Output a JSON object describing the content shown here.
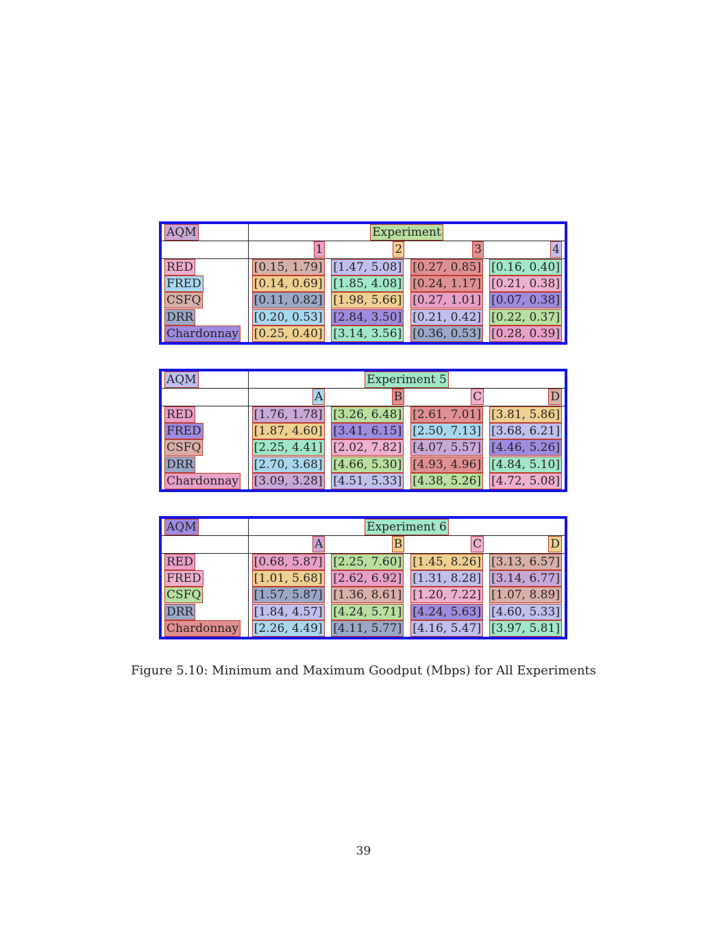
{
  "tables": [
    {
      "corner": "AQM",
      "title": "Experiment",
      "columns": [
        "1",
        "2",
        "3",
        "4"
      ],
      "rows": [
        {
          "aqm": "RED",
          "cells": [
            "[0.15, 1.79]",
            "[1.47, 5.08]",
            "[0.27, 0.85]",
            "[0.16, 0.40]"
          ]
        },
        {
          "aqm": "FRED",
          "cells": [
            "[0.14, 0.69]",
            "[1.85, 4.08]",
            "[0.24, 1.17]",
            "[0.21, 0.38]"
          ]
        },
        {
          "aqm": "CSFQ",
          "cells": [
            "[0.11, 0.82]",
            "[1.98, 5.66]",
            "[0.27, 1.01]",
            "[0.07, 0.38]"
          ]
        },
        {
          "aqm": "DRR",
          "cells": [
            "[0.20, 0.53]",
            "[2.84, 3.50]",
            "[0.21, 0.42]",
            "[0.22, 0.37]"
          ]
        },
        {
          "aqm": "Chardonnay",
          "cells": [
            "[0.25, 0.40]",
            "[3.14, 3.56]",
            "[0.36, 0.53]",
            "[0.28, 0.39]"
          ]
        }
      ]
    },
    {
      "corner": "AQM",
      "title": "Experiment 5",
      "columns": [
        "A",
        "B",
        "C",
        "D"
      ],
      "rows": [
        {
          "aqm": "RED",
          "cells": [
            "[1.76, 1.78]",
            "[3.26, 6.48]",
            "[2.61, 7.01]",
            "[3.81, 5.86]"
          ]
        },
        {
          "aqm": "FRED",
          "cells": [
            "[1.87, 4.60]",
            "[3.41, 6.15]",
            "[2.50, 7.13]",
            "[3.68, 6.21]"
          ]
        },
        {
          "aqm": "CSFQ",
          "cells": [
            "[2.25, 4.41]",
            "[2.02, 7.82]",
            "[4.07, 5.57]",
            "[4.46, 5.26]"
          ]
        },
        {
          "aqm": "DRR",
          "cells": [
            "[2.70, 3.68]",
            "[4.66, 5.30]",
            "[4.93, 4.96]",
            "[4.84, 5.10]"
          ]
        },
        {
          "aqm": "Chardonnay",
          "cells": [
            "[3.09, 3.28]",
            "[4.51, 5.33]",
            "[4.38, 5.26]",
            "[4.72, 5.08]"
          ]
        }
      ]
    },
    {
      "corner": "AQM",
      "title": "Experiment 6",
      "columns": [
        "A",
        "B",
        "C",
        "D"
      ],
      "rows": [
        {
          "aqm": "RED",
          "cells": [
            "[0.68, 5.87]",
            "[2.25, 7.60]",
            "[1.45, 8.26]",
            "[3.13, 6.57]"
          ]
        },
        {
          "aqm": "FRED",
          "cells": [
            "[1.01, 5.68]",
            "[2.62, 6.92]",
            "[1.31, 8.28]",
            "[3.14, 6.77]"
          ]
        },
        {
          "aqm": "CSFQ",
          "cells": [
            "[1.57, 5.87]",
            "[1.36, 8.61]",
            "[1.20, 7.22]",
            "[1.07, 8.89]"
          ]
        },
        {
          "aqm": "DRR",
          "cells": [
            "[1.84, 4.57]",
            "[4.24, 5.71]",
            "[4.24, 5.63]",
            "[4.60, 5.33]"
          ]
        },
        {
          "aqm": "Chardonnay",
          "cells": [
            "[2.26, 4.49]",
            "[4.11, 5.77]",
            "[4.16, 5.47]",
            "[3.97, 5.81]"
          ]
        }
      ]
    }
  ],
  "caption": "Figure 5.10: Minimum and Maximum Goodput (Mbps) for All Experiments",
  "page_number": "39"
}
